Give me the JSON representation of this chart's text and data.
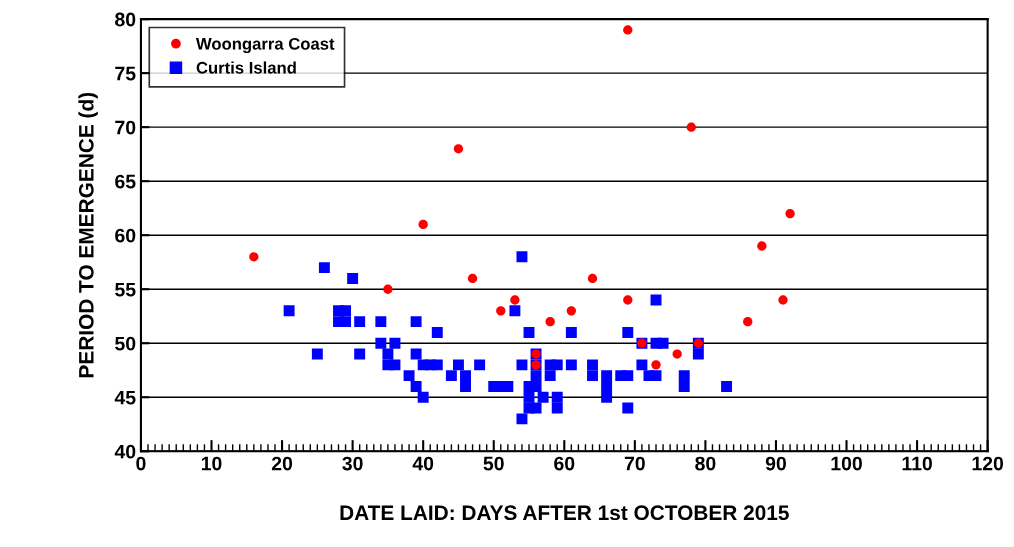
{
  "chart_data": {
    "type": "scatter",
    "xlabel": "DATE LAID: DAYS AFTER 1st OCTOBER 2015",
    "ylabel": "PERIOD TO EMERGENCE (d)",
    "xlim": [
      0,
      120
    ],
    "xticks": [
      0,
      10,
      20,
      30,
      40,
      50,
      60,
      70,
      80,
      90,
      100,
      110,
      120
    ],
    "ylim": [
      40,
      80
    ],
    "yticks": [
      40,
      45,
      50,
      55,
      60,
      65,
      70,
      75,
      80
    ],
    "grid": "y",
    "legend": "top left",
    "series": [
      {
        "name": "Curtis Island",
        "color": "#0000ff",
        "marker": "square",
        "x": [
          21,
          25,
          26,
          28,
          28,
          29,
          29,
          30,
          31,
          31,
          34,
          34,
          35,
          35,
          36,
          36,
          38,
          39,
          39,
          39,
          40,
          40,
          41,
          42,
          42,
          44,
          45,
          46,
          46,
          48,
          50,
          51,
          52,
          53,
          54,
          54,
          54,
          55,
          55,
          55,
          55,
          56,
          56,
          56,
          56,
          56,
          57,
          58,
          58,
          59,
          59,
          59,
          61,
          61,
          64,
          64,
          66,
          66,
          66,
          68,
          69,
          69,
          69,
          71,
          71,
          72,
          73,
          73,
          73,
          74,
          77,
          77,
          79,
          79,
          83
        ],
        "values": [
          53,
          49,
          57,
          52,
          53,
          52,
          53,
          56,
          52,
          49,
          52,
          50,
          49,
          48,
          50,
          48,
          47,
          52,
          49,
          46,
          48,
          45,
          48,
          51,
          48,
          47,
          48,
          47,
          46,
          48,
          46,
          46,
          46,
          53,
          58,
          48,
          43,
          51,
          46,
          45,
          44,
          49,
          48,
          47,
          46,
          44,
          45,
          48,
          47,
          48,
          45,
          44,
          51,
          48,
          48,
          47,
          47,
          46,
          45,
          47,
          51,
          47,
          44,
          50,
          48,
          47,
          54,
          50,
          47,
          50,
          47,
          46,
          50,
          49,
          46
        ]
      },
      {
        "name": "Woongarra Coast",
        "color": "#ff0000",
        "marker": "circle",
        "x": [
          16,
          35,
          40,
          45,
          47,
          51,
          53,
          56,
          56,
          58,
          61,
          64,
          69,
          69,
          71,
          73,
          76,
          78,
          79,
          86,
          88,
          91,
          92
        ],
        "values": [
          58,
          55,
          61,
          68,
          56,
          53,
          54,
          49,
          48,
          52,
          53,
          56,
          79,
          54,
          50,
          48,
          49,
          70,
          50,
          52,
          59,
          54,
          62
        ]
      }
    ]
  }
}
